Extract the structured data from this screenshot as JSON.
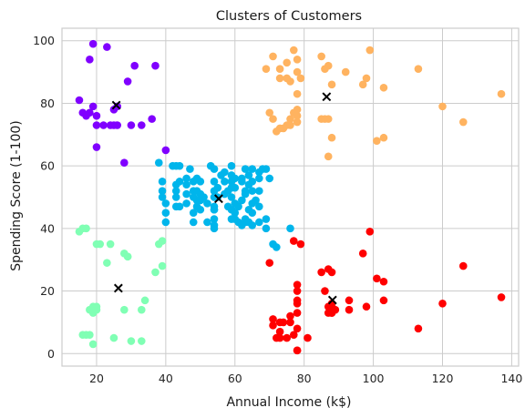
{
  "chart_data": {
    "type": "scatter",
    "title": "Clusters of Customers",
    "xlabel": "Annual Income (k$)",
    "ylabel": "Spending Score (1-100)",
    "xlim": [
      10,
      142
    ],
    "ylim": [
      -4,
      104
    ],
    "xticks": [
      20,
      40,
      60,
      80,
      100,
      120,
      140
    ],
    "yticks": [
      0,
      20,
      40,
      60,
      80,
      100
    ],
    "grid": true,
    "series": [
      {
        "color": "#8000ff",
        "points": [
          [
            19,
            99
          ],
          [
            23,
            98
          ],
          [
            18,
            94
          ],
          [
            31,
            92
          ],
          [
            37,
            92
          ],
          [
            29,
            87
          ],
          [
            15,
            81
          ],
          [
            16,
            77
          ],
          [
            19,
            79
          ],
          [
            17,
            76
          ],
          [
            18,
            77
          ],
          [
            20,
            76
          ],
          [
            26,
            79
          ],
          [
            20,
            73
          ],
          [
            24,
            73
          ],
          [
            25,
            73
          ],
          [
            26,
            73
          ],
          [
            30,
            73
          ],
          [
            33,
            73
          ],
          [
            36,
            75
          ],
          [
            40,
            65
          ],
          [
            20,
            66
          ],
          [
            28,
            61
          ],
          [
            25,
            78
          ],
          [
            22,
            73
          ]
        ]
      },
      {
        "color": "#ffb360",
        "points": [
          [
            69,
            91
          ],
          [
            71,
            95
          ],
          [
            73,
            88
          ],
          [
            73,
            91
          ],
          [
            75,
            93
          ],
          [
            75,
            88
          ],
          [
            77,
            97
          ],
          [
            78,
            94
          ],
          [
            78,
            90
          ],
          [
            78,
            83
          ],
          [
            76,
            87
          ],
          [
            79,
            88
          ],
          [
            85,
            95
          ],
          [
            86,
            91
          ],
          [
            87,
            92
          ],
          [
            88,
            86
          ],
          [
            92,
            90
          ],
          [
            97,
            86
          ],
          [
            98,
            88
          ],
          [
            99,
            97
          ],
          [
            103,
            85
          ],
          [
            113,
            91
          ],
          [
            70,
            77
          ],
          [
            71,
            75
          ],
          [
            73,
            72
          ],
          [
            72,
            71
          ],
          [
            74,
            72
          ],
          [
            75,
            73
          ],
          [
            76,
            75
          ],
          [
            77,
            77
          ],
          [
            78,
            74
          ],
          [
            78,
            76
          ],
          [
            78,
            78
          ],
          [
            76,
            73
          ],
          [
            85,
            75
          ],
          [
            86,
            75
          ],
          [
            87,
            75
          ],
          [
            88,
            69
          ],
          [
            87,
            63
          ],
          [
            101,
            68
          ],
          [
            103,
            69
          ],
          [
            120,
            79
          ],
          [
            126,
            74
          ],
          [
            137,
            83
          ]
        ]
      },
      {
        "color": "#00b5eb",
        "points": [
          [
            38,
            61
          ],
          [
            39,
            55
          ],
          [
            39,
            52
          ],
          [
            39,
            50
          ],
          [
            40,
            48
          ],
          [
            40,
            45
          ],
          [
            40,
            42
          ],
          [
            42,
            60
          ],
          [
            43,
            60
          ],
          [
            43,
            54
          ],
          [
            43,
            52
          ],
          [
            43,
            50
          ],
          [
            43,
            47
          ],
          [
            44,
            60
          ],
          [
            44,
            55
          ],
          [
            44,
            47
          ],
          [
            46,
            56
          ],
          [
            46,
            54
          ],
          [
            46,
            51
          ],
          [
            46,
            48
          ],
          [
            47,
            59
          ],
          [
            48,
            55
          ],
          [
            48,
            52
          ],
          [
            48,
            50
          ],
          [
            48,
            45
          ],
          [
            48,
            42
          ],
          [
            49,
            56
          ],
          [
            49,
            52
          ],
          [
            49,
            49
          ],
          [
            49,
            47
          ],
          [
            50,
            55
          ],
          [
            50,
            51
          ],
          [
            50,
            49
          ],
          [
            50,
            46
          ],
          [
            51,
            50
          ],
          [
            52,
            48
          ],
          [
            52,
            42
          ],
          [
            53,
            60
          ],
          [
            54,
            59
          ],
          [
            54,
            55
          ],
          [
            54,
            52
          ],
          [
            54,
            50
          ],
          [
            54,
            47
          ],
          [
            54,
            46
          ],
          [
            54,
            43
          ],
          [
            54,
            41
          ],
          [
            54,
            40
          ],
          [
            54,
            46
          ],
          [
            55,
            53
          ],
          [
            55,
            50
          ],
          [
            56,
            57
          ],
          [
            57,
            58
          ],
          [
            57,
            55
          ],
          [
            57,
            51
          ],
          [
            58,
            52
          ],
          [
            58,
            47
          ],
          [
            59,
            60
          ],
          [
            59,
            57
          ],
          [
            59,
            55
          ],
          [
            59,
            53
          ],
          [
            59,
            50
          ],
          [
            59,
            46
          ],
          [
            59,
            43
          ],
          [
            60,
            56
          ],
          [
            60,
            53
          ],
          [
            60,
            48
          ],
          [
            60,
            45
          ],
          [
            60,
            43
          ],
          [
            61,
            47
          ],
          [
            61,
            42
          ],
          [
            62,
            49
          ],
          [
            62,
            41
          ],
          [
            62,
            56
          ],
          [
            62,
            55
          ],
          [
            63,
            52
          ],
          [
            63,
            42
          ],
          [
            63,
            59
          ],
          [
            63,
            51
          ],
          [
            63,
            43
          ],
          [
            64,
            46
          ],
          [
            64,
            42
          ],
          [
            64,
            57
          ],
          [
            64,
            54
          ],
          [
            65,
            59
          ],
          [
            65,
            55
          ],
          [
            65,
            52
          ],
          [
            65,
            48
          ],
          [
            65,
            45
          ],
          [
            65,
            41
          ],
          [
            66,
            49
          ],
          [
            67,
            56
          ],
          [
            67,
            52
          ],
          [
            67,
            47
          ],
          [
            67,
            42
          ],
          [
            67,
            58
          ],
          [
            68,
            59
          ],
          [
            69,
            43
          ],
          [
            69,
            40
          ],
          [
            69,
            59
          ],
          [
            70,
            56
          ],
          [
            71,
            35
          ],
          [
            72,
            34
          ],
          [
            76,
            40
          ]
        ]
      },
      {
        "color": "#80ffb4",
        "points": [
          [
            15,
            39
          ],
          [
            16,
            40
          ],
          [
            17,
            40
          ],
          [
            16,
            6
          ],
          [
            17,
            6
          ],
          [
            18,
            6
          ],
          [
            18,
            14
          ],
          [
            19,
            15
          ],
          [
            19,
            13
          ],
          [
            19,
            3
          ],
          [
            20,
            14
          ],
          [
            20,
            15
          ],
          [
            20,
            35
          ],
          [
            21,
            35
          ],
          [
            23,
            29
          ],
          [
            24,
            35
          ],
          [
            25,
            5
          ],
          [
            28,
            32
          ],
          [
            28,
            14
          ],
          [
            29,
            31
          ],
          [
            29,
            31
          ],
          [
            30,
            4
          ],
          [
            33,
            4
          ],
          [
            33,
            14
          ],
          [
            34,
            17
          ],
          [
            37,
            26
          ],
          [
            38,
            35
          ],
          [
            39,
            36
          ],
          [
            39,
            28
          ]
        ]
      },
      {
        "color": "#ff0000",
        "points": [
          [
            70,
            29
          ],
          [
            71,
            11
          ],
          [
            71,
            9
          ],
          [
            72,
            5
          ],
          [
            73,
            7
          ],
          [
            73,
            5
          ],
          [
            73,
            10
          ],
          [
            74,
            10
          ],
          [
            75,
            5
          ],
          [
            76,
            12
          ],
          [
            76,
            10
          ],
          [
            77,
            6
          ],
          [
            77,
            36
          ],
          [
            78,
            1
          ],
          [
            78,
            1
          ],
          [
            78,
            22
          ],
          [
            78,
            20
          ],
          [
            78,
            17
          ],
          [
            78,
            16
          ],
          [
            78,
            13
          ],
          [
            78,
            8
          ],
          [
            79,
            35
          ],
          [
            81,
            5
          ],
          [
            85,
            26
          ],
          [
            86,
            20
          ],
          [
            87,
            27
          ],
          [
            87,
            13
          ],
          [
            87,
            15
          ],
          [
            88,
            13
          ],
          [
            88,
            15
          ],
          [
            88,
            16
          ],
          [
            88,
            13
          ],
          [
            88,
            26
          ],
          [
            89,
            14
          ],
          [
            93,
            17
          ],
          [
            93,
            14
          ],
          [
            97,
            32
          ],
          [
            98,
            15
          ],
          [
            99,
            39
          ],
          [
            101,
            24
          ],
          [
            103,
            23
          ],
          [
            103,
            17
          ],
          [
            113,
            8
          ],
          [
            120,
            16
          ],
          [
            126,
            28
          ],
          [
            137,
            18
          ]
        ]
      }
    ],
    "centroids": [
      [
        25.7,
        79.4
      ],
      [
        86.5,
        82.1
      ],
      [
        55.3,
        49.5
      ],
      [
        26.3,
        20.9
      ],
      [
        88.2,
        17.1
      ]
    ],
    "centroid_color": "#000000"
  }
}
